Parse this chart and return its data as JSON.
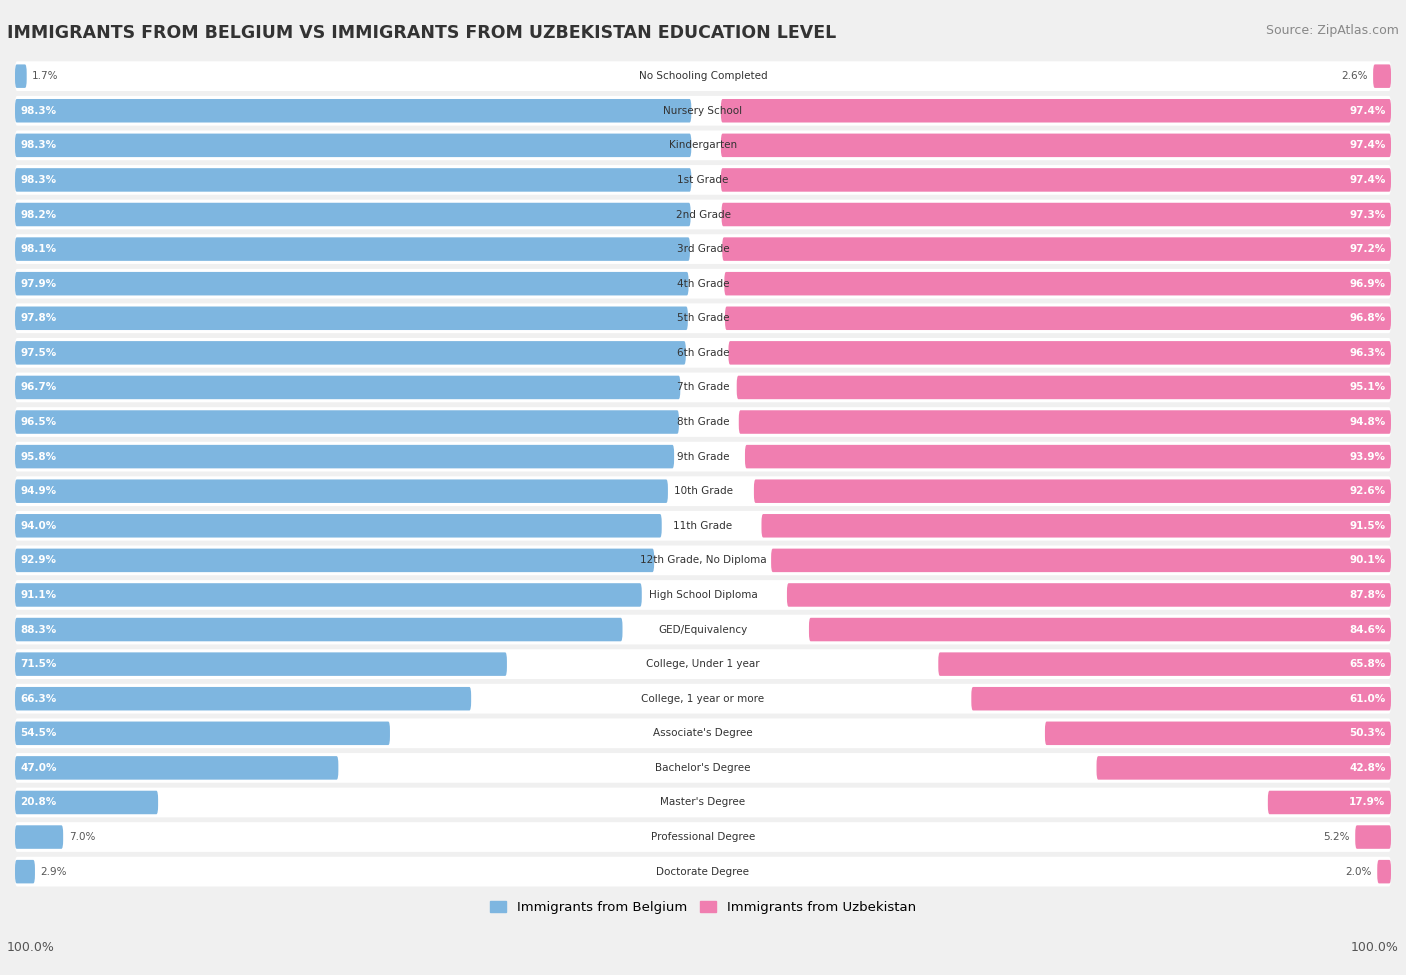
{
  "title": "IMMIGRANTS FROM BELGIUM VS IMMIGRANTS FROM UZBEKISTAN EDUCATION LEVEL",
  "source": "Source: ZipAtlas.com",
  "categories": [
    "No Schooling Completed",
    "Nursery School",
    "Kindergarten",
    "1st Grade",
    "2nd Grade",
    "3rd Grade",
    "4th Grade",
    "5th Grade",
    "6th Grade",
    "7th Grade",
    "8th Grade",
    "9th Grade",
    "10th Grade",
    "11th Grade",
    "12th Grade, No Diploma",
    "High School Diploma",
    "GED/Equivalency",
    "College, Under 1 year",
    "College, 1 year or more",
    "Associate's Degree",
    "Bachelor's Degree",
    "Master's Degree",
    "Professional Degree",
    "Doctorate Degree"
  ],
  "belgium": [
    1.7,
    98.3,
    98.3,
    98.3,
    98.2,
    98.1,
    97.9,
    97.8,
    97.5,
    96.7,
    96.5,
    95.8,
    94.9,
    94.0,
    92.9,
    91.1,
    88.3,
    71.5,
    66.3,
    54.5,
    47.0,
    20.8,
    7.0,
    2.9
  ],
  "uzbekistan": [
    2.6,
    97.4,
    97.4,
    97.4,
    97.3,
    97.2,
    96.9,
    96.8,
    96.3,
    95.1,
    94.8,
    93.9,
    92.6,
    91.5,
    90.1,
    87.8,
    84.6,
    65.8,
    61.0,
    50.3,
    42.8,
    17.9,
    5.2,
    2.0
  ],
  "belgium_color": "#7EB6E0",
  "uzbekistan_color": "#F07EB0",
  "background_color": "#F0F0F0",
  "bar_background": "#FFFFFF",
  "legend_belgium": "Immigrants from Belgium",
  "legend_uzbekistan": "Immigrants from Uzbekistan",
  "axis_label_left": "100.0%",
  "axis_label_right": "100.0%"
}
